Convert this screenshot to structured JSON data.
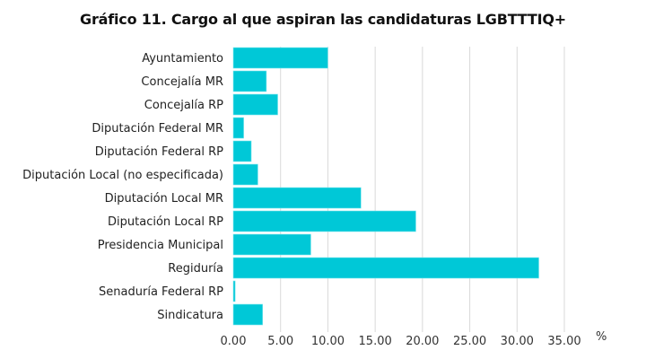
{
  "chart_data": {
    "type": "bar",
    "orientation": "horizontal",
    "title": "Gráfico 11. Cargo al que aspiran las candidaturas LGBTTTIQ+",
    "xlabel": "%",
    "ylabel": "",
    "categories": [
      "Ayuntamiento",
      "Concejalía MR",
      "Concejalía RP",
      "Diputación Federal MR",
      "Diputación Federal RP",
      "Diputación Local (no especificada)",
      "Diputación Local MR",
      "Diputación Local RP",
      "Presidencia Municipal",
      "Regiduría",
      "Senaduría Federal RP",
      "Sindicatura"
    ],
    "values": [
      10.0,
      3.5,
      4.7,
      1.1,
      1.9,
      2.6,
      13.5,
      19.3,
      8.2,
      32.3,
      0.2,
      3.1
    ],
    "xlim": [
      0,
      35
    ],
    "xticks": [
      "0.00",
      "5.00",
      "10.00",
      "15.00",
      "20.00",
      "25.00",
      "30.00",
      "35.00"
    ],
    "grid": true,
    "legend": "none",
    "bar_color": "#00c8d7"
  }
}
